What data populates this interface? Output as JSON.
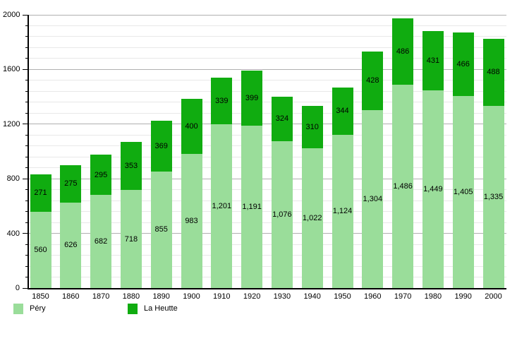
{
  "chart_data": {
    "type": "bar",
    "stacked": true,
    "title": "",
    "xlabel": "",
    "ylabel": "",
    "categories": [
      "1850",
      "1860",
      "1870",
      "1880",
      "1890",
      "1900",
      "1910",
      "1920",
      "1930",
      "1940",
      "1950",
      "1960",
      "1970",
      "1980",
      "1990",
      "2000"
    ],
    "series": [
      {
        "name": "Péry",
        "color": "#9ADD9A",
        "values": [
          560,
          626,
          682,
          718,
          855,
          983,
          1201,
          1191,
          1076,
          1022,
          1124,
          1304,
          1486,
          1449,
          1405,
          1335
        ]
      },
      {
        "name": "La Heutte",
        "color": "#10AC10",
        "values": [
          271,
          275,
          295,
          353,
          369,
          400,
          339,
          399,
          324,
          310,
          344,
          428,
          486,
          431,
          466,
          488
        ]
      }
    ],
    "ylim": [
      0,
      2000
    ],
    "y_major_step": 400,
    "y_minor_step": 80,
    "yticks": [
      "0",
      "400",
      "800",
      "1200",
      "1600",
      "2000"
    ],
    "grid": true,
    "value_label_format": "thousands-comma",
    "legend_position": "bottom-left",
    "colors": {
      "background": "#ffffff",
      "axis": "#000000",
      "major_grid": "#b0b0b0",
      "minor_grid": "#e8e8e8",
      "label_text": "#000000"
    }
  }
}
